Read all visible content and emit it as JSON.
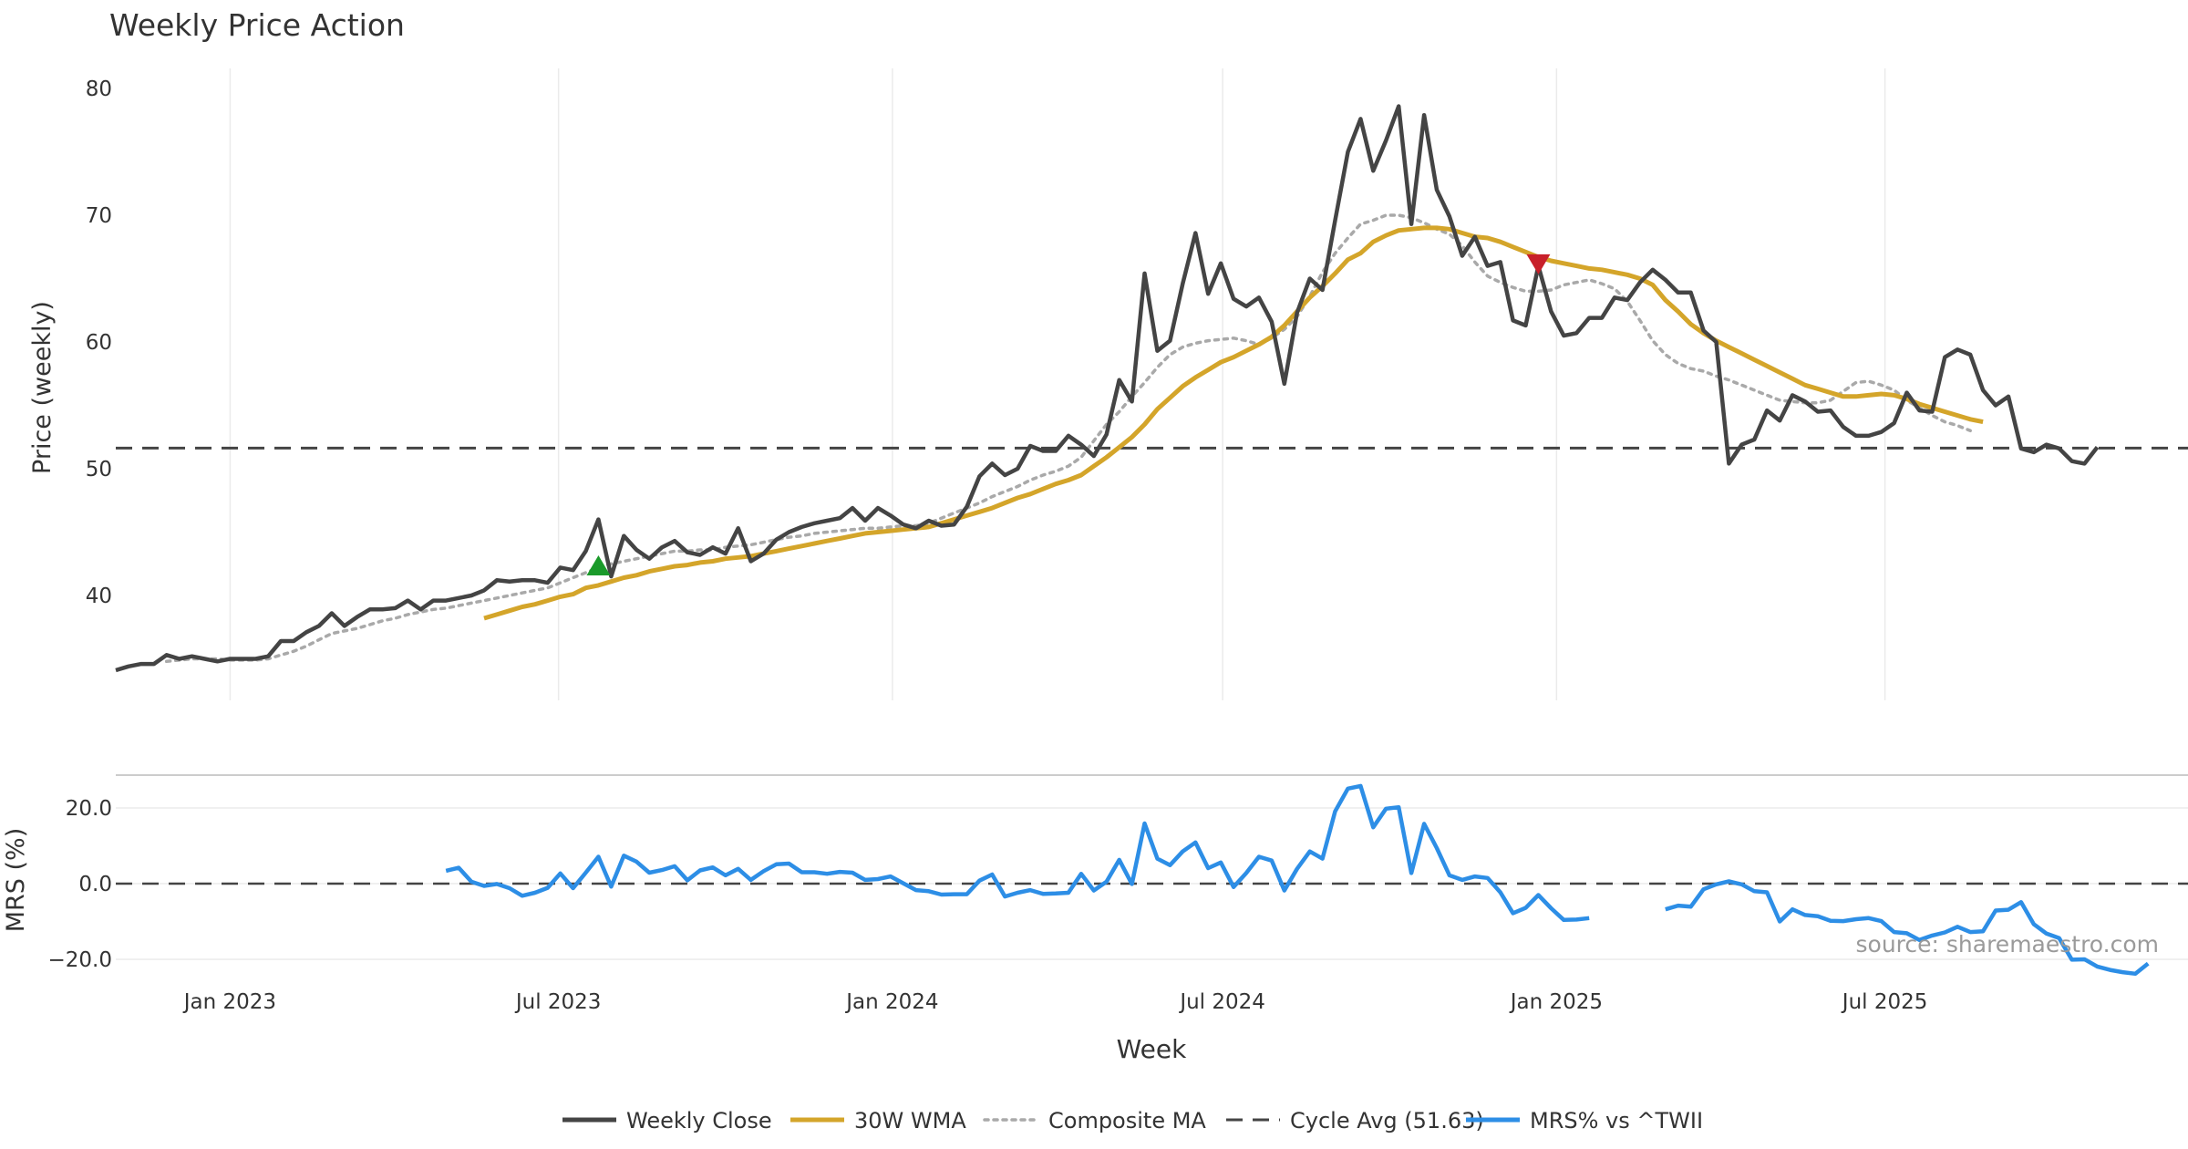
{
  "chart_data": [
    {
      "type": "line",
      "title": "Weekly Price Action",
      "xlabel": "",
      "ylabel": "Price (weekly)",
      "ylim": [
        31,
        81
      ],
      "yticks": [
        "40",
        "50",
        "60",
        "70",
        "80"
      ],
      "x_range": [
        "2022-10-30",
        "2025-12-15"
      ],
      "x_tick_labels": [
        "Jan 2023",
        "Jul 2023",
        "Jan 2024",
        "Jul 2024",
        "Jan 2025",
        "Jul 2025"
      ],
      "x_tick_dates": [
        "2023-01-01",
        "2023-07-01",
        "2024-01-01",
        "2024-07-01",
        "2025-01-01",
        "2025-07-01"
      ],
      "series": [
        {
          "name": "Weekly Close",
          "color": "#444444",
          "start_week": 0,
          "values": [
            34.1,
            34.4,
            34.6,
            34.6,
            35.3,
            35.0,
            35.2,
            35.0,
            34.8,
            35.0,
            35.0,
            35.0,
            35.2,
            36.4,
            36.4,
            37.1,
            37.6,
            38.6,
            37.6,
            38.3,
            38.9,
            38.9,
            39.0,
            39.6,
            38.9,
            39.6,
            39.6,
            39.8,
            40.0,
            40.4,
            41.2,
            41.1,
            41.2,
            41.2,
            41.0,
            42.2,
            42.0,
            43.5,
            46.0,
            41.5,
            44.7,
            43.6,
            42.9,
            43.8,
            44.3,
            43.4,
            43.2,
            43.8,
            43.3,
            45.3,
            42.7,
            43.3,
            44.4,
            45.0,
            45.4,
            45.7,
            45.9,
            46.1,
            46.9,
            45.9,
            46.9,
            46.3,
            45.6,
            45.3,
            45.9,
            45.5,
            45.6,
            47.0,
            49.4,
            50.4,
            49.5,
            50.0,
            51.8,
            51.4,
            51.4,
            52.6,
            51.9,
            51.0,
            52.7,
            57.0,
            55.3,
            65.4,
            59.3,
            60.1,
            64.6,
            68.6,
            63.8,
            66.2,
            63.4,
            62.8,
            63.5,
            61.6,
            56.7,
            62.3,
            65.0,
            64.1,
            69.6,
            75.0,
            77.6,
            73.5,
            75.9,
            78.6,
            69.3,
            77.9,
            72.0,
            69.9,
            66.8,
            68.3,
            66.0,
            66.3,
            61.7,
            61.3,
            66.0,
            62.4,
            60.5,
            60.7,
            61.9,
            61.9,
            63.5,
            63.3,
            64.7,
            65.7,
            64.9,
            63.9,
            63.9,
            60.9,
            60.0,
            50.4,
            51.9,
            52.3,
            54.6,
            53.8,
            55.8,
            55.3,
            54.5,
            54.6,
            53.3,
            52.6,
            52.6,
            52.9,
            53.6,
            56.0,
            54.6,
            54.5,
            58.8,
            59.4,
            59.0,
            56.2,
            55.0,
            55.7,
            51.6,
            51.3,
            51.9,
            51.6,
            50.6,
            50.4,
            51.7
          ]
        },
        {
          "name": "30W WMA",
          "color": "#d4a52a",
          "start_week": 29,
          "values": [
            38.2,
            38.5,
            38.8,
            39.1,
            39.3,
            39.6,
            39.9,
            40.1,
            40.6,
            40.8,
            41.1,
            41.4,
            41.6,
            41.9,
            42.1,
            42.3,
            42.4,
            42.6,
            42.7,
            42.9,
            43.0,
            43.1,
            43.3,
            43.5,
            43.7,
            43.9,
            44.1,
            44.3,
            44.5,
            44.7,
            44.9,
            45.0,
            45.1,
            45.2,
            45.3,
            45.4,
            45.7,
            46.0,
            46.3,
            46.6,
            46.9,
            47.3,
            47.7,
            48.0,
            48.4,
            48.8,
            49.1,
            49.5,
            50.2,
            50.9,
            51.7,
            52.5,
            53.5,
            54.7,
            55.6,
            56.5,
            57.2,
            57.8,
            58.4,
            58.8,
            59.3,
            59.8,
            60.4,
            61.3,
            62.4,
            63.5,
            64.4,
            65.4,
            66.5,
            67.0,
            67.9,
            68.4,
            68.8,
            68.9,
            69.0,
            69.0,
            68.9,
            68.6,
            68.3,
            68.2,
            67.9,
            67.5,
            67.1,
            66.7,
            66.4,
            66.2,
            66.0,
            65.8,
            65.7,
            65.5,
            65.3,
            65.0,
            64.5,
            63.3,
            62.4,
            61.4,
            60.7,
            60.1,
            59.6,
            59.1,
            58.6,
            58.1,
            57.6,
            57.1,
            56.6,
            56.3,
            56.0,
            55.7,
            55.7,
            55.8,
            55.9,
            55.8,
            55.5,
            55.1,
            54.8,
            54.5,
            54.2,
            53.9,
            53.7
          ]
        },
        {
          "name": "Composite MA",
          "color": "#a9a9a9",
          "start_week": 4,
          "values": [
            34.8,
            34.9,
            35.0,
            35.0,
            35.0,
            34.9,
            34.9,
            34.9,
            35.0,
            35.3,
            35.6,
            36.0,
            36.5,
            37.0,
            37.2,
            37.4,
            37.7,
            38.0,
            38.2,
            38.5,
            38.7,
            38.9,
            39.0,
            39.2,
            39.4,
            39.6,
            39.8,
            40.0,
            40.2,
            40.4,
            40.6,
            41.0,
            41.4,
            41.8,
            42.2,
            42.5,
            42.7,
            42.9,
            43.1,
            43.3,
            43.5,
            43.5,
            43.6,
            43.6,
            43.8,
            43.9,
            44.0,
            44.2,
            44.4,
            44.6,
            44.7,
            44.9,
            45.0,
            45.1,
            45.2,
            45.3,
            45.3,
            45.4,
            45.5,
            45.5,
            45.7,
            46.1,
            46.5,
            46.9,
            47.3,
            47.8,
            48.2,
            48.6,
            49.1,
            49.5,
            49.8,
            50.2,
            50.9,
            52.2,
            53.5,
            54.5,
            55.7,
            56.8,
            58.0,
            59.0,
            59.6,
            59.9,
            60.1,
            60.2,
            60.3,
            60.1,
            59.8,
            60.3,
            61.0,
            62.0,
            63.6,
            65.5,
            67.0,
            68.2,
            69.3,
            69.6,
            70.0,
            70.0,
            69.8,
            69.4,
            68.9,
            68.5,
            67.6,
            66.3,
            65.2,
            64.7,
            64.3,
            64.0,
            64.0,
            64.1,
            64.5,
            64.7,
            64.9,
            64.6,
            64.2,
            63.2,
            61.7,
            60.1,
            59.0,
            58.3,
            57.9,
            57.7,
            57.3,
            57.0,
            56.6,
            56.2,
            55.8,
            55.4,
            55.3,
            55.2,
            55.2,
            55.4,
            56.1,
            56.8,
            56.9,
            56.6,
            56.2,
            55.4,
            54.8,
            54.2,
            53.7,
            53.4,
            53.0
          ]
        },
        {
          "name": "Cycle Avg (51.63)",
          "color": "#444444",
          "value": 51.63
        }
      ],
      "markers": [
        {
          "type": "buy",
          "week": 38,
          "value": 42.3,
          "color": "#1a9a2a"
        },
        {
          "type": "sell",
          "week": 112,
          "value": 66.2,
          "color": "#c8202a"
        }
      ]
    },
    {
      "type": "line",
      "title": "",
      "xlabel": "Week",
      "ylabel": "MRS (%)",
      "ylim": [
        -25,
        28
      ],
      "yticks": [
        "20.0",
        "0.0",
        "−20.0"
      ],
      "zero_line": 0.0,
      "series": [
        {
          "name": "MRS% vs ^TWII",
          "color": "#2d8ee6",
          "start_week": 26,
          "segments": [
            {
              "start_week": 26,
              "values": [
                3.4,
                4.2,
                0.5,
                -0.6,
                -0.1,
                -1.2,
                -3.2,
                -2.4,
                -1.1,
                2.7,
                -1.2,
                2.9,
                7.1,
                -0.8,
                7.4,
                5.8,
                2.9,
                3.6,
                4.6,
                0.9,
                3.5,
                4.3,
                2.2,
                3.9,
                1.0,
                3.3,
                5.1,
                5.3,
                3.0,
                3.0,
                2.6,
                3.1,
                2.9,
                1.0,
                1.2,
                1.9,
                0.1,
                -1.7,
                -2.0,
                -2.9,
                -2.8,
                -2.8,
                0.8,
                2.4,
                -3.4,
                -2.4,
                -1.7,
                -2.7,
                -2.6,
                -2.4,
                2.6,
                -1.8,
                0.5,
                6.3,
                -0.1,
                15.9,
                6.6,
                4.9,
                8.5,
                10.9,
                4.1,
                5.6,
                -0.9,
                2.8,
                7.1,
                6.1,
                -1.8,
                3.9,
                8.5,
                6.6,
                19.1,
                25.1,
                25.8,
                14.9,
                19.8,
                20.2,
                2.8,
                15.8,
                9.4,
                2.2,
                1.0,
                1.9,
                1.5,
                -2.3,
                -7.8,
                -6.4,
                -3.0,
                -6.5,
                -9.6,
                -9.5,
                -9.1
              ]
            },
            {
              "start_week": 122,
              "values": [
                -6.8,
                -5.8,
                -6.1,
                -1.5,
                -0.2,
                0.6,
                -0.2,
                -2.0,
                -2.3,
                -10.0,
                -6.8,
                -8.3,
                -8.6,
                -9.8,
                -9.9,
                -9.4,
                -9.1,
                -9.9,
                -12.8,
                -13.1,
                -14.9,
                -13.7,
                -12.9,
                -11.4,
                -12.8,
                -12.6,
                -7.1,
                -6.9,
                -4.9,
                -10.7,
                -13.2,
                -14.4,
                -20.1,
                -20.0,
                -21.9,
                -22.8,
                -23.4,
                -23.8,
                -21.1
              ]
            }
          ]
        },
        {
          "name": "Cycle Avg (51.63)",
          "color": "#444444",
          "value": 0.0
        }
      ],
      "x_tick_labels": [
        "Jan 2023",
        "Jul 2023",
        "Jan 2024",
        "Jul 2024",
        "Jan 2025",
        "Jul 2025"
      ]
    }
  ],
  "legend": {
    "position": "bottom-center",
    "items": [
      {
        "label": "Weekly Close",
        "style": "solid",
        "color": "#444444"
      },
      {
        "label": "30W WMA",
        "style": "solid",
        "color": "#d4a52a"
      },
      {
        "label": "Composite MA",
        "style": "dotted",
        "color": "#a9a9a9"
      },
      {
        "label": "Cycle Avg (51.63)",
        "style": "dashed",
        "color": "#444444"
      },
      {
        "label": "MRS% vs ^TWII",
        "style": "solid",
        "color": "#2d8ee6"
      }
    ]
  },
  "watermark": "source: sharemaestro.com"
}
